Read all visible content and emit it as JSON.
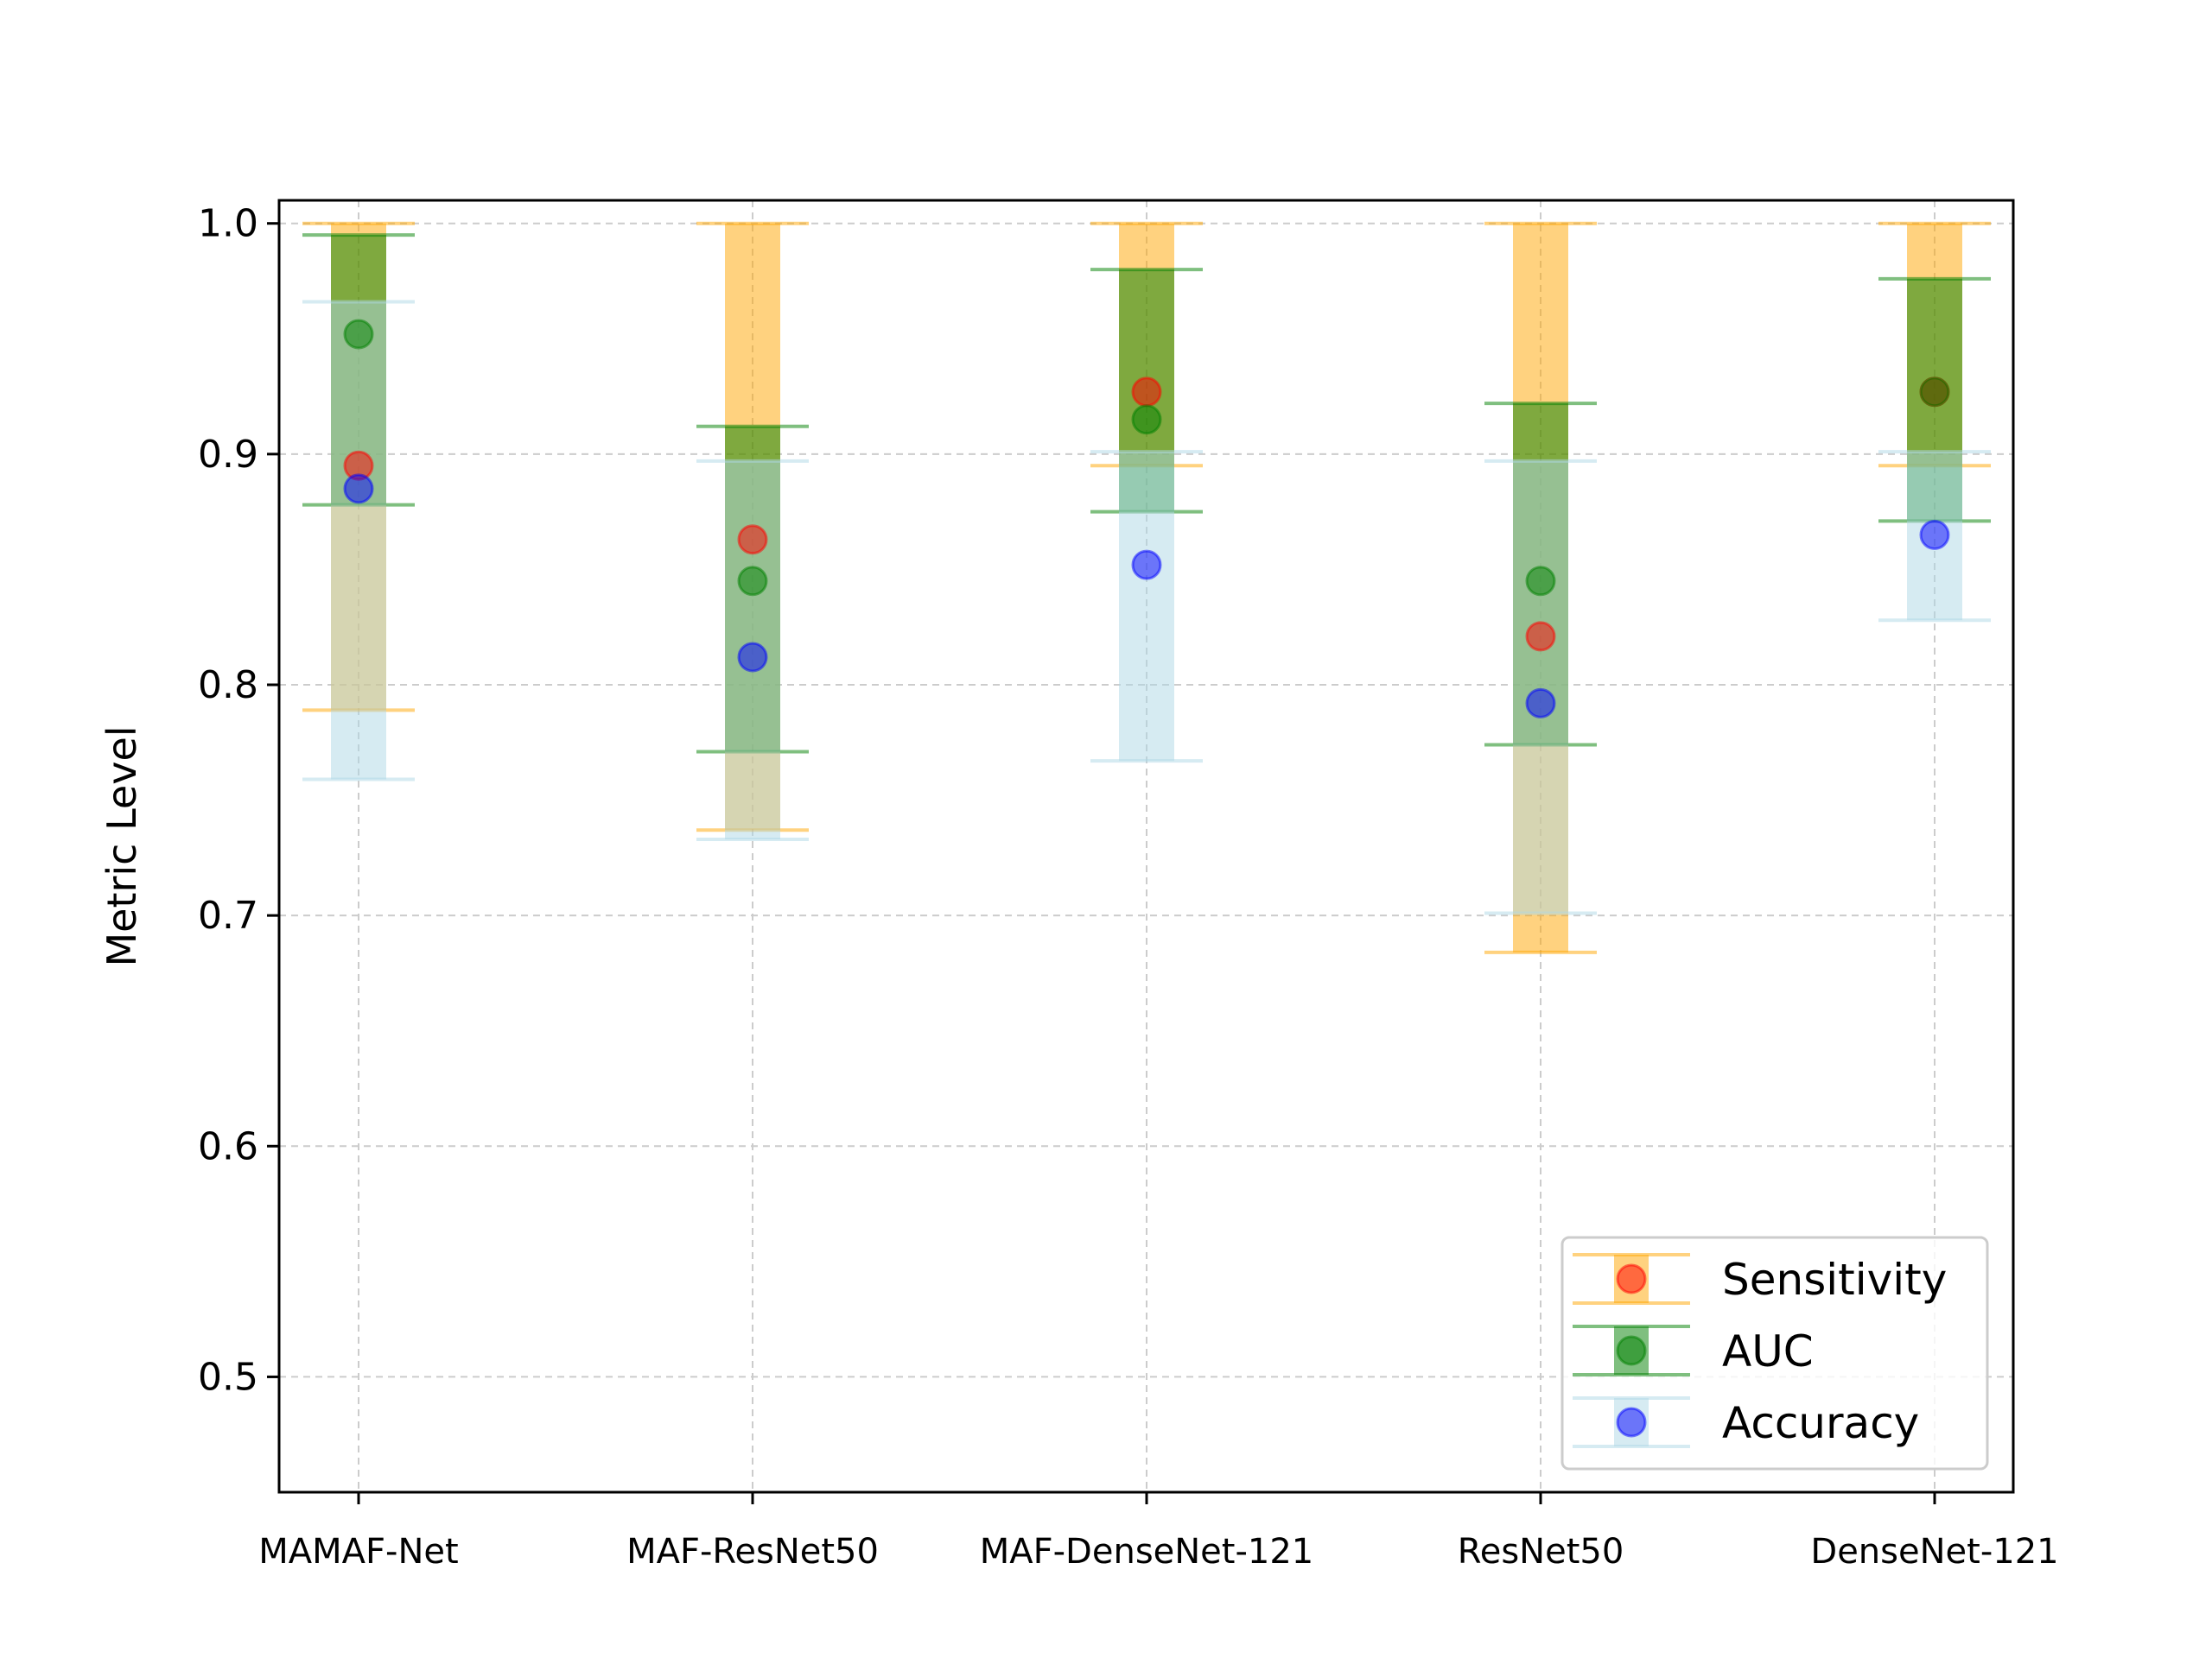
{
  "chart_data": {
    "type": "errorbar",
    "title": "",
    "xlabel": "",
    "ylabel": "Metric Level",
    "ylim": [
      0.45,
      1.01
    ],
    "yticks": [
      "0.5",
      "0.6",
      "0.7",
      "0.8",
      "0.9",
      "1.0"
    ],
    "categories": [
      "MAMAF-Net",
      "MAF-ResNet50",
      "MAF-DenseNet-121",
      "ResNet50",
      "DenseNet-121"
    ],
    "grid": true,
    "legend_position": "lower-right",
    "series": [
      {
        "name": "Sensitivity",
        "bar_color": "#ffa500",
        "marker_color": "#ff0000",
        "values": [
          0.895,
          0.863,
          0.927,
          0.821,
          0.927
        ],
        "lower": [
          0.789,
          0.737,
          0.895,
          0.684,
          0.895
        ],
        "upper": [
          1.0,
          1.0,
          1.0,
          1.0,
          1.0
        ]
      },
      {
        "name": "AUC",
        "bar_color": "#008000",
        "marker_color": "#008000",
        "values": [
          0.952,
          0.845,
          0.915,
          0.845,
          0.927
        ],
        "lower": [
          0.878,
          0.771,
          0.875,
          0.774,
          0.871
        ],
        "upper": [
          0.995,
          0.912,
          0.98,
          0.922,
          0.976
        ]
      },
      {
        "name": "Accuracy",
        "bar_color": "#add8e6",
        "marker_color": "#0000ff",
        "values": [
          0.885,
          0.812,
          0.852,
          0.792,
          0.865
        ],
        "lower": [
          0.759,
          0.733,
          0.767,
          0.701,
          0.828
        ],
        "upper": [
          0.966,
          0.897,
          0.901,
          0.897,
          0.901
        ]
      }
    ]
  }
}
